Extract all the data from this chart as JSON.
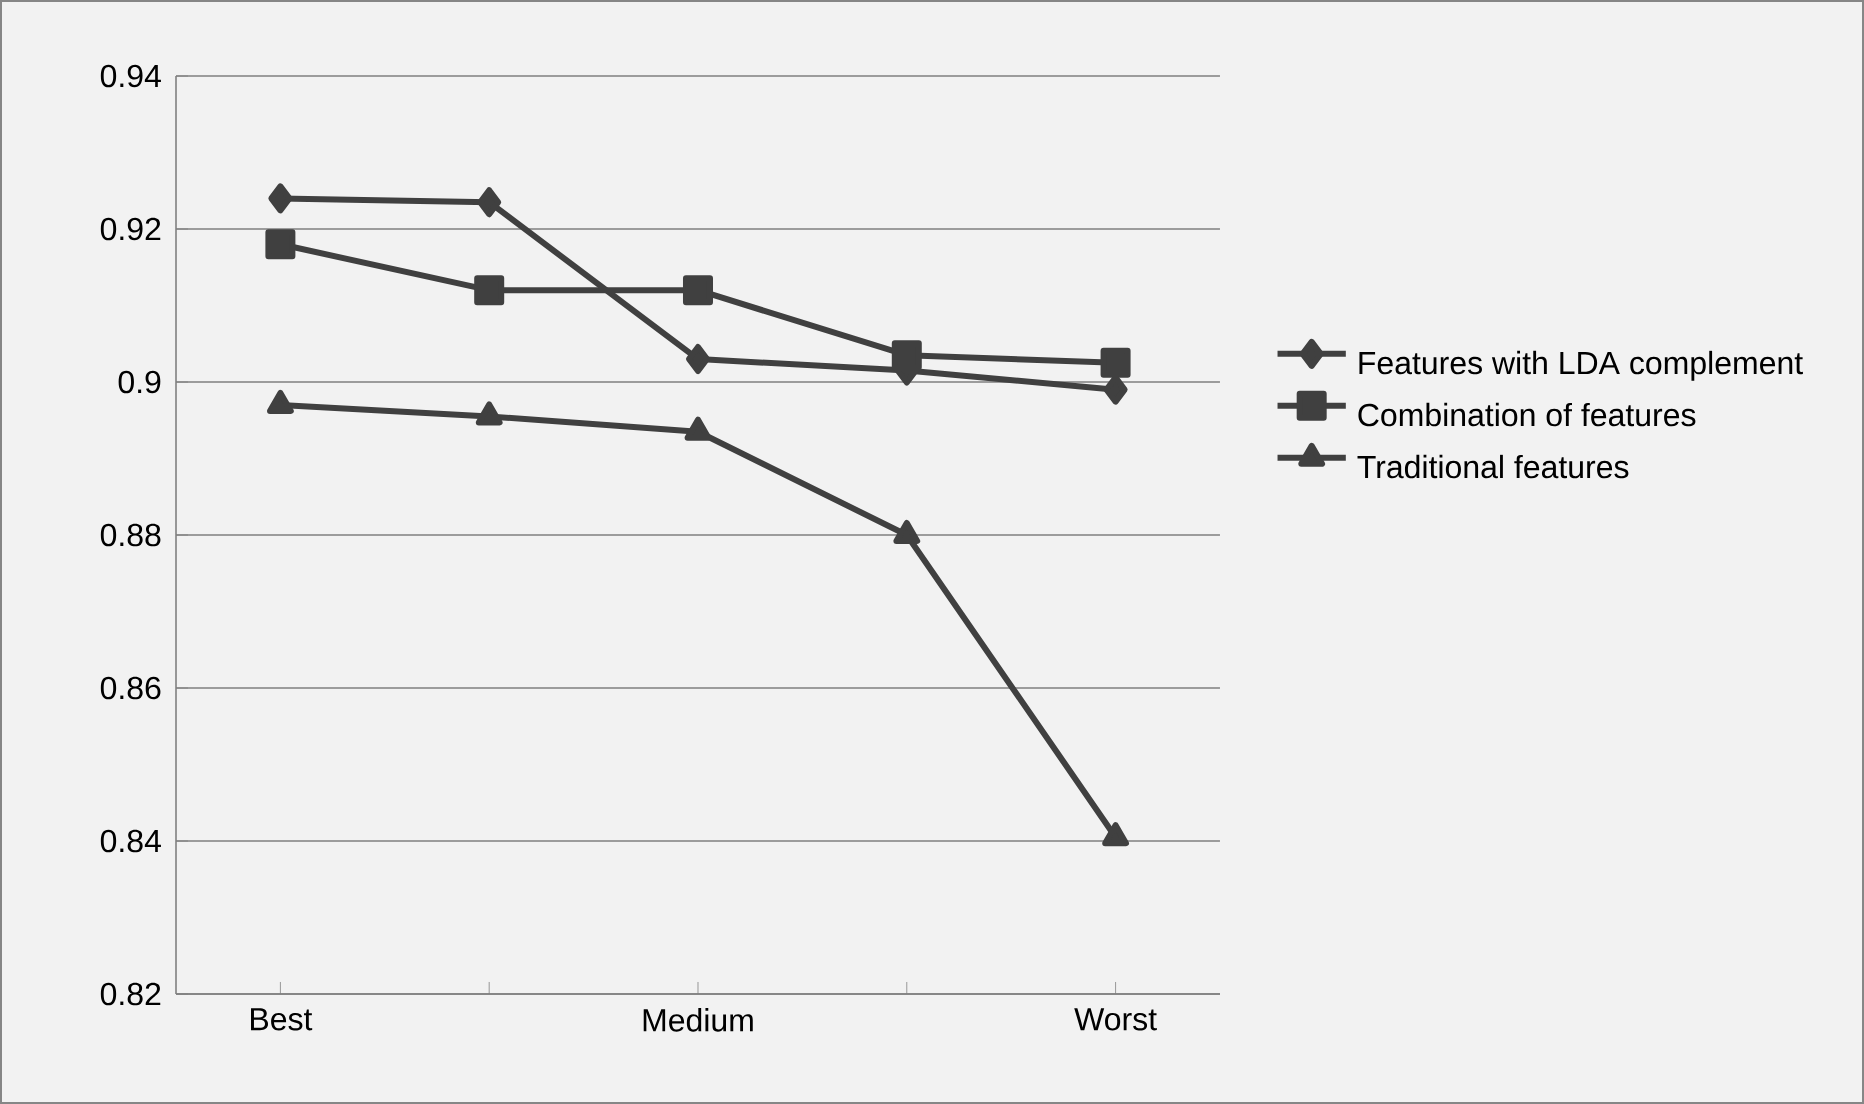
{
  "chart_data": {
    "type": "line",
    "categories": [
      "Best",
      null,
      "Medium",
      null,
      "Worst"
    ],
    "series": [
      {
        "name": "Features with LDA complement",
        "color": "#404040",
        "marker": "diamond",
        "values": [
          0.924,
          0.9235,
          0.903,
          0.9015,
          0.899
        ]
      },
      {
        "name": "Combination of features",
        "color": "#404040",
        "marker": "square",
        "values": [
          0.918,
          0.912,
          0.912,
          0.9035,
          0.9025
        ]
      },
      {
        "name": "Traditional features",
        "color": "#404040",
        "marker": "triangle",
        "values": [
          0.897,
          0.8955,
          0.8935,
          0.88,
          0.8405
        ]
      }
    ],
    "ylim": [
      0.82,
      0.94
    ],
    "yticks": [
      0.82,
      0.84,
      0.86,
      0.88,
      0.9,
      0.92,
      0.94
    ],
    "grid": "y",
    "legend": "right",
    "line_style": "solid"
  }
}
